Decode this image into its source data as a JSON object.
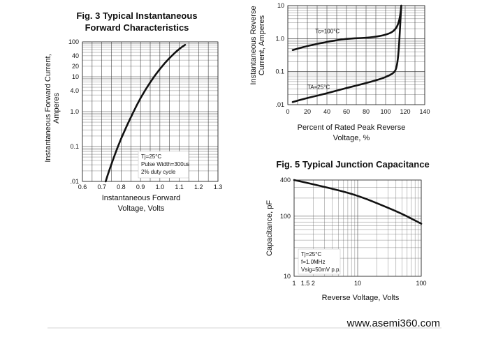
{
  "chart_data": [
    {
      "id": "fig3",
      "type": "line",
      "title": "Fig. 3 Typical Instantaneous\nForward Characteristics",
      "xlabel": "Instantaneous Forward\nVoltage, Volts",
      "ylabel": "Instantaneous Forward Current,\nAmperes",
      "x_scale": "linear",
      "y_scale": "log",
      "xlim": [
        0.6,
        1.3
      ],
      "ylim": [
        0.01,
        100
      ],
      "x_ticks": [
        "0.6",
        "0.7",
        "0.8",
        "0.9",
        "1.0",
        "1.1",
        "1.2",
        "1.3"
      ],
      "y_ticks": [
        ".01",
        "0.1",
        "1.0",
        "4.0",
        "10",
        "20",
        "40",
        "100"
      ],
      "y_tick_values": [
        0.01,
        0.1,
        1,
        4,
        10,
        20,
        40,
        100
      ],
      "note": [
        "Tj=25°C",
        "Pulse Width=300us",
        "2% duty cycle"
      ],
      "series": [
        {
          "x": [
            0.72,
            0.74,
            0.76,
            0.78,
            0.8,
            0.83,
            0.86,
            0.9,
            0.95,
            1.0,
            1.05,
            1.1,
            1.13
          ],
          "y": [
            0.01,
            0.022,
            0.045,
            0.09,
            0.17,
            0.4,
            0.9,
            2.5,
            7,
            17,
            35,
            63,
            82
          ]
        }
      ]
    },
    {
      "id": "fig4",
      "type": "line",
      "title": "",
      "xlabel": "Percent of Rated Peak Reverse\nVoltage, %",
      "ylabel": "Instantaneous Reverse\nCurrent, Amperes",
      "x_scale": "linear",
      "y_scale": "log",
      "xlim": [
        0,
        140
      ],
      "ylim": [
        0.01,
        10
      ],
      "x_ticks": [
        "0",
        "20",
        "40",
        "60",
        "80",
        "100",
        "120",
        "140"
      ],
      "y_ticks": [
        ".01",
        "0.1",
        "1.0",
        "10"
      ],
      "y_tick_values": [
        0.01,
        0.1,
        1,
        10
      ],
      "series": [
        {
          "name": "Tc=100°C",
          "x": [
            5,
            20,
            40,
            60,
            80,
            95,
            105,
            110,
            113,
            115,
            116
          ],
          "y": [
            0.45,
            0.6,
            0.8,
            1.0,
            1.05,
            1.2,
            1.45,
            1.9,
            2.8,
            5,
            10
          ]
        },
        {
          "name": "TA=25°C",
          "x": [
            5,
            20,
            40,
            60,
            80,
            95,
            103,
            108,
            111,
            113,
            114.5,
            116
          ],
          "y": [
            0.012,
            0.016,
            0.022,
            0.032,
            0.045,
            0.06,
            0.075,
            0.09,
            0.12,
            0.3,
            1.5,
            10
          ]
        }
      ]
    },
    {
      "id": "fig5",
      "type": "line",
      "title": "Fig. 5 Typical Junction Capacitance",
      "xlabel": "Reverse Voltage, Volts",
      "ylabel": "Capacitance, pF",
      "x_scale": "log",
      "y_scale": "log",
      "xlim": [
        1,
        100
      ],
      "ylim": [
        10,
        400
      ],
      "x_ticks": [
        "1",
        "1.5",
        "2",
        "10",
        "100"
      ],
      "x_tick_values": [
        1,
        1.5,
        2,
        10,
        100
      ],
      "y_ticks": [
        "10",
        "100",
        "400"
      ],
      "y_tick_values": [
        10,
        100,
        400
      ],
      "note": [
        "Tj=25°C",
        "f=1.0MHz",
        "Vsig=50mV p.p."
      ],
      "series": [
        {
          "x": [
            1,
            2,
            5,
            10,
            20,
            50,
            100
          ],
          "y": [
            400,
            340,
            270,
            220,
            165,
            110,
            75
          ]
        }
      ]
    }
  ],
  "footer": {
    "website": "www.asemi360.com"
  }
}
